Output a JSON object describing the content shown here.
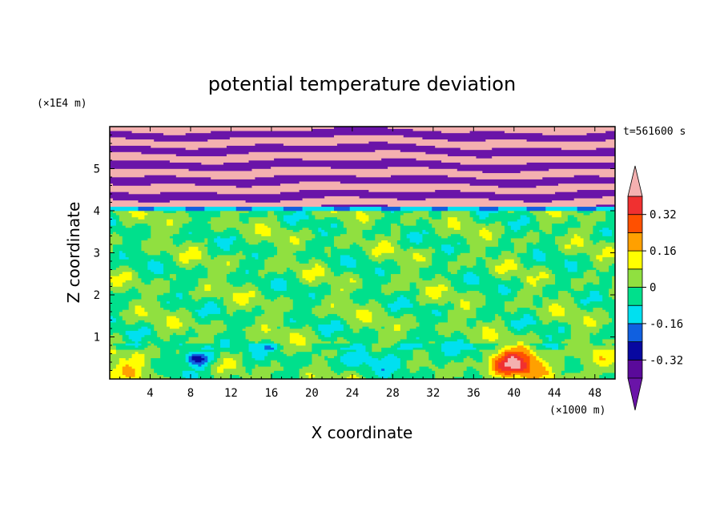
{
  "chart_data": {
    "type": "heatmap",
    "title": "potential temperature deviation",
    "xlabel": "X coordinate",
    "ylabel": "Z coordinate",
    "x_unit": "(×1000 m)",
    "y_unit": "(×1E4 m)",
    "time_label": "t=561600 s",
    "xlim": [
      0,
      50
    ],
    "ylim": [
      0,
      6
    ],
    "x_ticks": [
      4,
      8,
      12,
      16,
      20,
      24,
      28,
      32,
      36,
      40,
      44,
      48
    ],
    "y_ticks": [
      1,
      2,
      3,
      4,
      5
    ],
    "colorbar": {
      "levels": [
        -0.4,
        -0.32,
        -0.24,
        -0.16,
        -0.08,
        0,
        0.08,
        0.16,
        0.24,
        0.32,
        0.4
      ],
      "labels": [
        "-0.32",
        "-0.16",
        "0",
        "0.16",
        "0.32"
      ],
      "label_values": [
        -0.32,
        -0.16,
        0,
        0.16,
        0.32
      ],
      "colors": [
        "#5a0a9a",
        "#0808a0",
        "#1060e0",
        "#00e0f0",
        "#00e08c",
        "#90e040",
        "#ffff00",
        "#ffa000",
        "#ff5000",
        "#f03030"
      ],
      "under_color": "#6a14a8",
      "over_color": "#f4b0b0"
    },
    "regions": [
      {
        "z": [
          4.1,
          6.0
        ],
        "description_value": "alternating +0.4 (pink) and -0.4 (purple) bands"
      },
      {
        "z": [
          0.8,
          4.1
        ],
        "description_value": "mostly -0.08 to 0.08"
      },
      {
        "z": [
          0.0,
          0.8
        ],
        "description_value": "mixed, warm anomaly near x=40 up to 0.4, cold near x=9"
      }
    ]
  }
}
